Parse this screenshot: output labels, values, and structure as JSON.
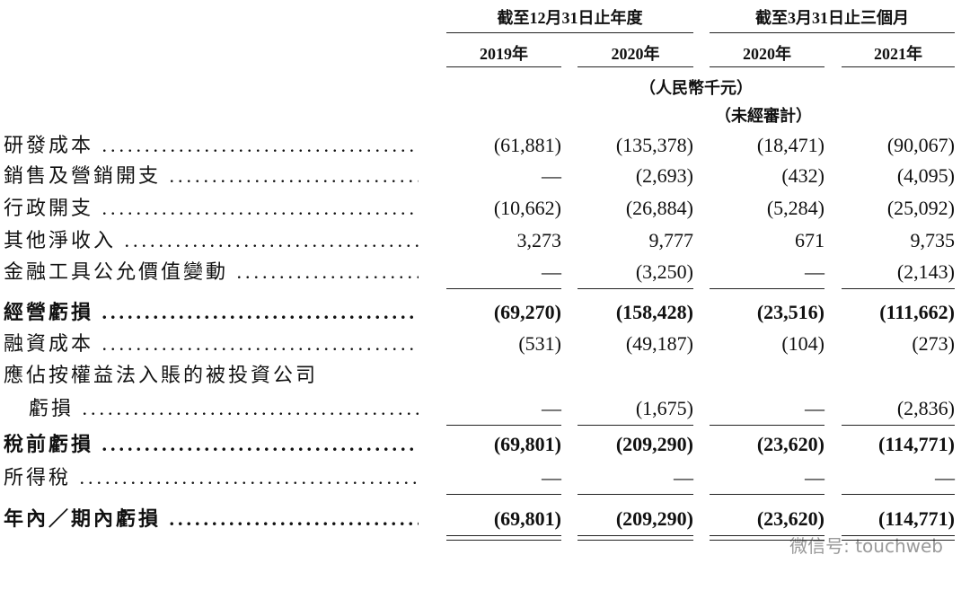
{
  "header": {
    "groups": [
      "截至12月31日止年度",
      "截至3月31日止三個月"
    ],
    "columns": [
      "2019年",
      "2020年",
      "2020年",
      "2021年"
    ],
    "unit": "（人民幣千元）",
    "audit_note": "（未經審計）"
  },
  "rows": [
    {
      "label": "研發成本",
      "values": [
        "(61,881)",
        "(135,378)",
        "(18,471)",
        "(90,067)"
      ]
    },
    {
      "label": "銷售及營銷開支",
      "values": [
        "—",
        "(2,693)",
        "(432)",
        "(4,095)"
      ]
    },
    {
      "label": "行政開支",
      "values": [
        "(10,662)",
        "(26,884)",
        "(5,284)",
        "(25,092)"
      ]
    },
    {
      "label": "其他淨收入",
      "values": [
        "3,273",
        "9,777",
        "671",
        "9,735"
      ]
    },
    {
      "label": "金融工具公允價值變動",
      "values": [
        "—",
        "(3,250)",
        "—",
        "(2,143)"
      ],
      "rule_below": "single"
    },
    {
      "label": "經營虧損",
      "values": [
        "(69,270)",
        "(158,428)",
        "(23,516)",
        "(111,662)"
      ],
      "bold": true
    },
    {
      "label": "融資成本",
      "values": [
        "(531)",
        "(49,187)",
        "(104)",
        "(273)"
      ]
    },
    {
      "label": "應佔按權益法入賬的被投資公司"
    },
    {
      "label": "虧損",
      "values": [
        "—",
        "(1,675)",
        "—",
        "(2,836)"
      ],
      "indent": true,
      "rule_below": "single"
    },
    {
      "label": "稅前虧損",
      "values": [
        "(69,801)",
        "(209,290)",
        "(23,620)",
        "(114,771)"
      ],
      "bold": true
    },
    {
      "label": "所得稅",
      "values": [
        "—",
        "—",
        "—",
        "—"
      ],
      "rule_below": "single"
    },
    {
      "label": "年內／期內虧損",
      "values": [
        "(69,801)",
        "(209,290)",
        "(23,620)",
        "(114,771)"
      ],
      "bold": true,
      "rule_below": "double"
    }
  ],
  "watermark": "微信号: touchweb"
}
